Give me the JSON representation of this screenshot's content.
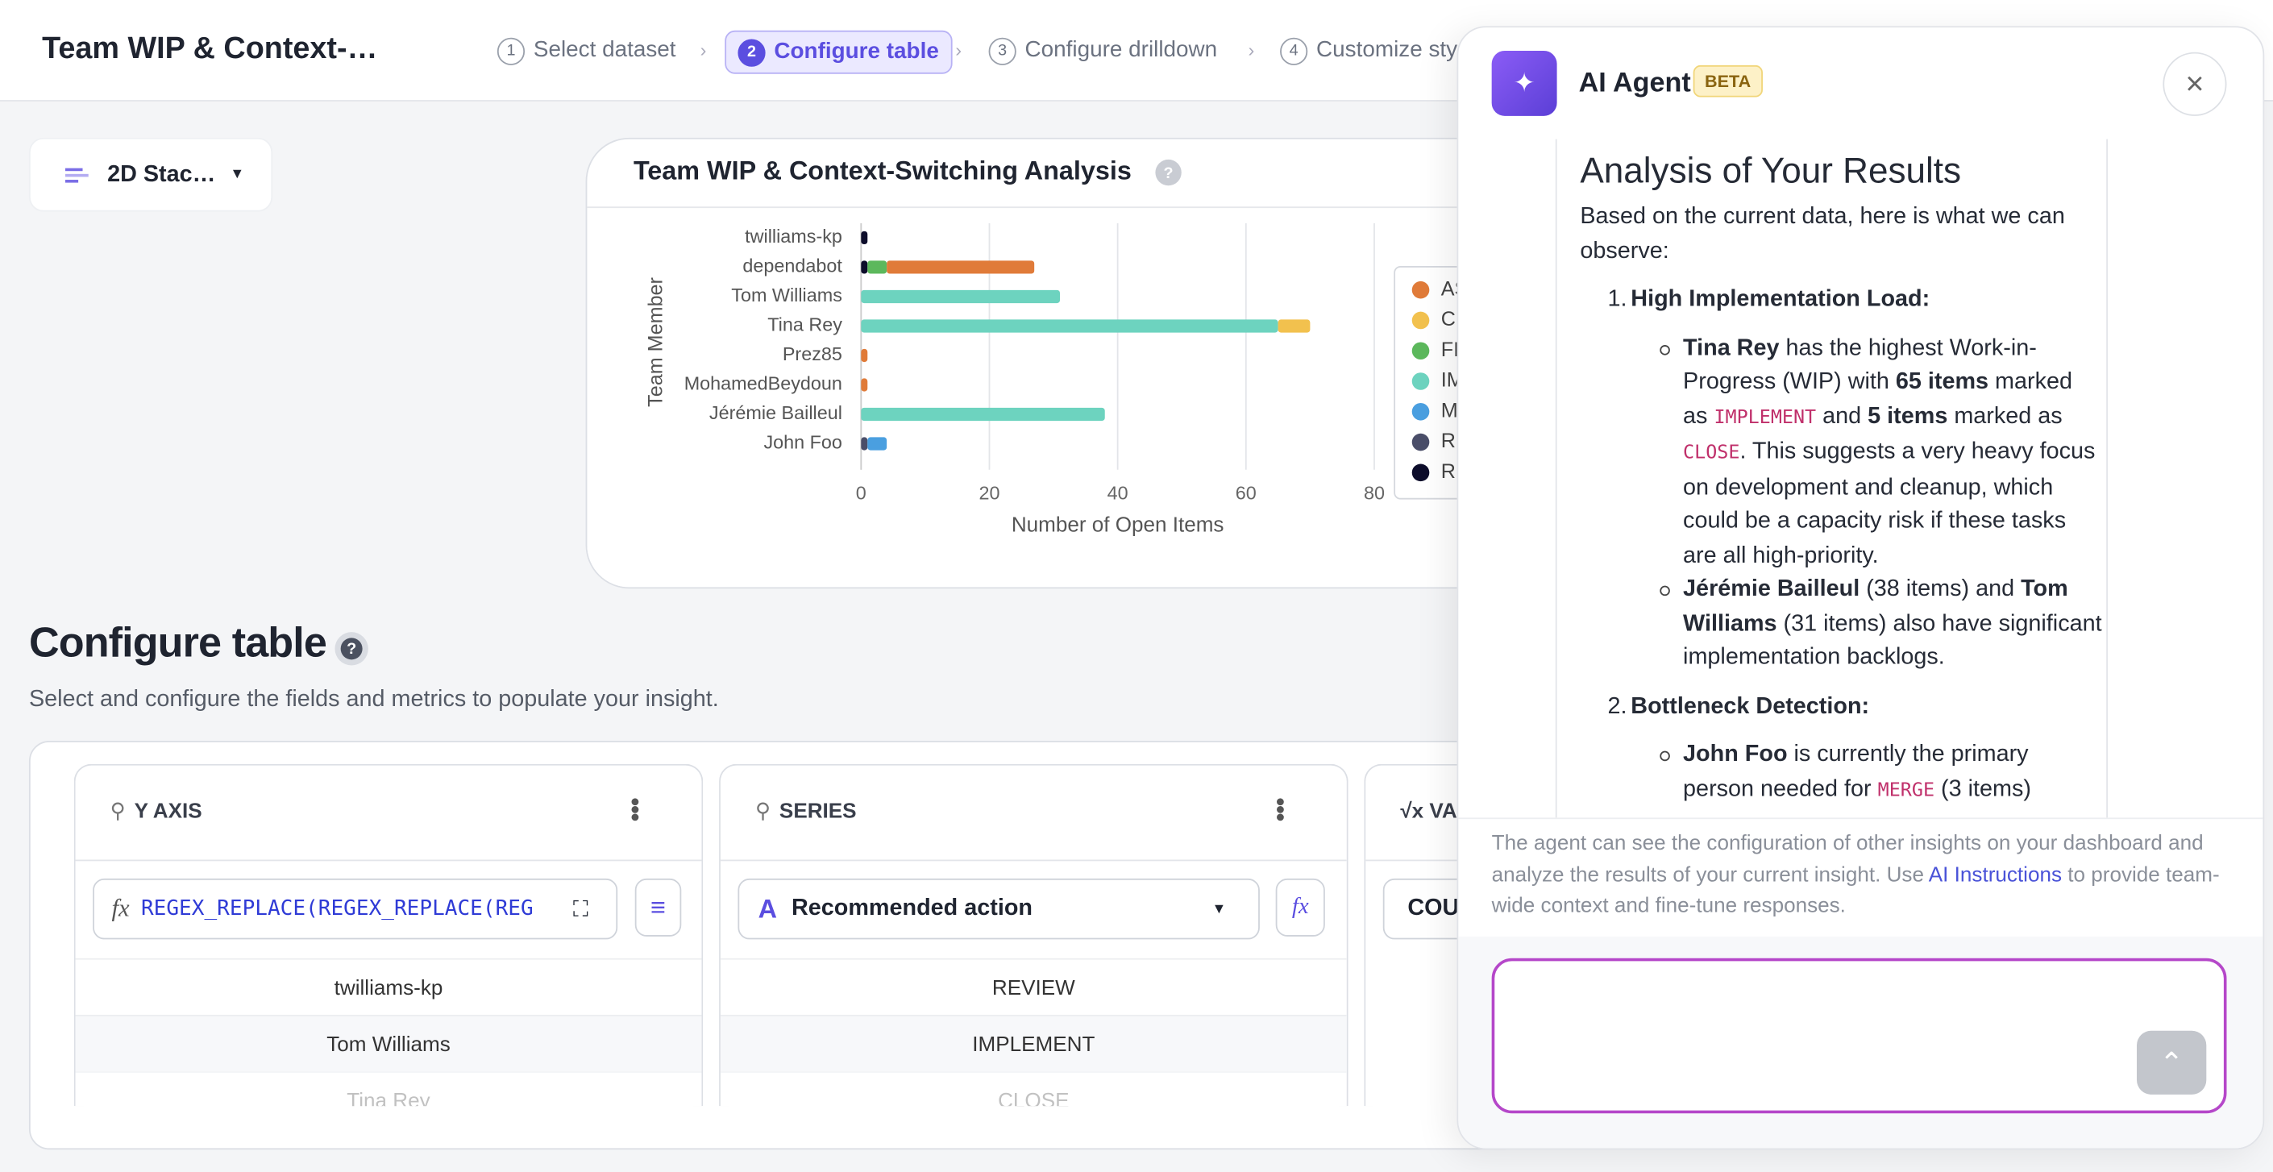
{
  "header": {
    "title": "Team WIP & Context-…",
    "steps": [
      {
        "num": 1,
        "label": "Select dataset"
      },
      {
        "num": 2,
        "label": "Configure table"
      },
      {
        "num": 3,
        "label": "Configure drilldown"
      },
      {
        "num": 4,
        "label": "Customize sty"
      }
    ]
  },
  "chart_selector": "2D Stac…",
  "chart_data": {
    "type": "bar",
    "orientation": "horizontal",
    "stacked": true,
    "title": "Team WIP & Context-Switching Analysis",
    "help": "?",
    "ylabel": "Team Member",
    "xlabel": "Number of Open Items",
    "categories": [
      "twilliams-kp",
      "dependabot",
      "Tom Williams",
      "Tina Rey",
      "Prez85",
      "MohamedBeydoun",
      "Jérémie Bailleul",
      "John Foo"
    ],
    "xlim": [
      0,
      80
    ],
    "xticks": [
      0,
      20,
      40,
      60,
      80
    ],
    "grid": true,
    "legend": "right",
    "series": [
      {
        "name": "AS",
        "color": "#e07b39",
        "values": [
          null,
          23,
          null,
          null,
          1,
          1,
          null,
          null
        ]
      },
      {
        "name": "CLOSE",
        "color": "#f2c14e",
        "values": [
          null,
          null,
          null,
          5,
          null,
          null,
          null,
          null
        ]
      },
      {
        "name": "FI",
        "color": "#5cb85c",
        "values": [
          null,
          3,
          null,
          null,
          null,
          null,
          null,
          null
        ]
      },
      {
        "name": "IMPLEMENT",
        "color": "#6dd3bf",
        "values": [
          null,
          null,
          31,
          65,
          null,
          null,
          38,
          null
        ]
      },
      {
        "name": "MERGE",
        "color": "#4a9fe0",
        "values": [
          null,
          null,
          null,
          null,
          null,
          null,
          null,
          3
        ]
      },
      {
        "name": "RI",
        "color": "#4a4e69",
        "values": [
          null,
          null,
          null,
          null,
          null,
          null,
          null,
          1
        ]
      },
      {
        "name": "REVIEW",
        "color": "#0d0d2b",
        "values": [
          1,
          1,
          null,
          null,
          null,
          null,
          null,
          null
        ]
      }
    ]
  },
  "configure": {
    "title": "Configure table",
    "help": "?",
    "subtitle": "Select and configure the fields and metrics to populate your insight.",
    "columns": [
      {
        "title": "Y AXIS",
        "fx": "fx",
        "formula": "REGEX_REPLACE(REGEX_REPLACE(REG",
        "rows": [
          "twilliams-kp",
          "Tom Williams",
          "Tina Rey"
        ]
      },
      {
        "title": "SERIES",
        "icon": "A",
        "field": "Recommended action",
        "fx": "fx",
        "rows": [
          "REVIEW",
          "IMPLEMENT",
          "CLOSE"
        ]
      },
      {
        "title": "VA",
        "field": "COU"
      }
    ]
  },
  "agent": {
    "title": "AI Agent",
    "badge": "BETA",
    "heading": "Analysis of Your Results",
    "intro": "Based on the current data, here is what we can observe:",
    "points": [
      {
        "num": "1.",
        "label": "High Implementation Load:",
        "sub": [
          [
            "Tina Rey",
            " has the highest Work-in-Progress (WIP) with ",
            "65 items",
            " marked as ",
            "IMPLEMENT",
            " and ",
            "5 items",
            " marked as ",
            "CLOSE",
            ". This suggests a very heavy focus on development and cleanup, which could be a capacity risk if these tasks are all high-priority."
          ],
          [
            "Jérémie Bailleul",
            " (38 items) and ",
            "Tom Williams",
            " (31 items) also have significant implementation backlogs."
          ]
        ]
      },
      {
        "num": "2.",
        "label": "Bottleneck Detection:",
        "sub": [
          [
            "John Foo",
            " is currently the primary person needed for ",
            "MERGE",
            " (3 items)"
          ]
        ]
      }
    ],
    "note": [
      "The agent can see the configuration of other insights on your dashboard and analyze the results of your current insight. Use ",
      "AI Instructions",
      " to provide team-wide context and fine-tune responses."
    ]
  }
}
